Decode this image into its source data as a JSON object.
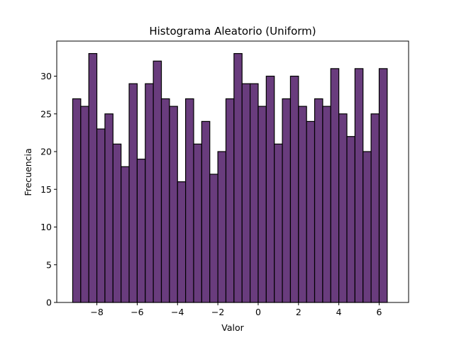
{
  "chart_data": {
    "type": "bar",
    "title": "Histograma Aleatorio (Uniform)",
    "xlabel": "Valor",
    "ylabel": "Frecuencia",
    "bin_start": -9.2,
    "bin_width": 0.4,
    "values": [
      27,
      26,
      33,
      23,
      25,
      21,
      18,
      29,
      19,
      29,
      32,
      27,
      26,
      16,
      27,
      21,
      24,
      17,
      20,
      27,
      33,
      29,
      29,
      26,
      30,
      21,
      27,
      30,
      26,
      24,
      27,
      26,
      31,
      25,
      22,
      31,
      20,
      25,
      31
    ],
    "xlim": [
      -9.99,
      7.46
    ],
    "ylim": [
      0,
      34.65
    ],
    "xticks": [
      -8,
      -6,
      -4,
      -2,
      0,
      2,
      4,
      6
    ],
    "xtick_labels": [
      "−8",
      "−6",
      "−4",
      "−2",
      "0",
      "2",
      "4",
      "6"
    ],
    "yticks": [
      0,
      5,
      10,
      15,
      20,
      25,
      30
    ],
    "ytick_labels": [
      "0",
      "5",
      "10",
      "15",
      "20",
      "25",
      "30"
    ],
    "grid": false,
    "colors": {
      "bar_fill": "#693C7D",
      "bar_edge": "#000000"
    }
  }
}
